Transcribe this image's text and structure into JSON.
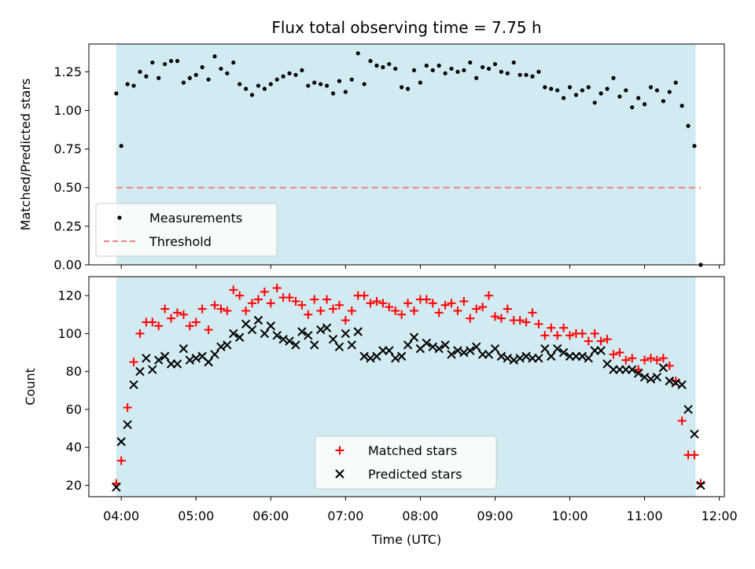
{
  "chart_data": [
    {
      "type": "scatter",
      "title": "Flux total observing time = 7.75 h",
      "xlabel": "",
      "ylabel": "Matched/Predicted stars",
      "xlim": [
        "03:34",
        "12:04"
      ],
      "ylim": [
        0,
        1.43
      ],
      "xticks": [
        "04:00",
        "05:00",
        "06:00",
        "07:00",
        "08:00",
        "09:00",
        "10:00",
        "11:00",
        "12:00"
      ],
      "yticks": [
        "0.00",
        "0.25",
        "0.50",
        "0.75",
        "1.00",
        "1.25"
      ],
      "observing_window": [
        "03:56",
        "11:41"
      ],
      "window_color": "#add8e6",
      "legend": {
        "placement": "lower-left",
        "entries": [
          "Measurements",
          "Threshold"
        ]
      },
      "threshold": {
        "name": "Threshold",
        "value": 0.5,
        "x_range": [
          "03:56",
          "11:45"
        ],
        "color": "#f08080",
        "style": "dashed"
      },
      "series": [
        {
          "name": "Measurements",
          "color": "#000000",
          "marker": "dot",
          "x": [
            "03:56",
            "04:00",
            "04:05",
            "04:10",
            "04:15",
            "04:20",
            "04:25",
            "04:30",
            "04:35",
            "04:40",
            "04:45",
            "04:50",
            "04:55",
            "05:00",
            "05:05",
            "05:10",
            "05:15",
            "05:20",
            "05:25",
            "05:30",
            "05:35",
            "05:40",
            "05:45",
            "05:50",
            "05:55",
            "06:00",
            "06:05",
            "06:10",
            "06:15",
            "06:20",
            "06:25",
            "06:30",
            "06:35",
            "06:40",
            "06:45",
            "06:50",
            "06:55",
            "07:00",
            "07:05",
            "07:10",
            "07:15",
            "07:20",
            "07:25",
            "07:30",
            "07:35",
            "07:40",
            "07:45",
            "07:50",
            "07:55",
            "08:00",
            "08:05",
            "08:10",
            "08:15",
            "08:20",
            "08:25",
            "08:30",
            "08:35",
            "08:40",
            "08:45",
            "08:50",
            "08:55",
            "09:00",
            "09:05",
            "09:10",
            "09:15",
            "09:20",
            "09:25",
            "09:30",
            "09:35",
            "09:40",
            "09:45",
            "09:50",
            "09:55",
            "10:00",
            "10:05",
            "10:10",
            "10:15",
            "10:20",
            "10:25",
            "10:30",
            "10:35",
            "10:40",
            "10:45",
            "10:50",
            "10:55",
            "11:00",
            "11:05",
            "11:10",
            "11:15",
            "11:20",
            "11:25",
            "11:30",
            "11:35",
            "11:40",
            "11:45"
          ],
          "values": [
            1.11,
            0.77,
            1.17,
            1.16,
            1.25,
            1.22,
            1.31,
            1.21,
            1.3,
            1.32,
            1.32,
            1.18,
            1.21,
            1.23,
            1.28,
            1.2,
            1.35,
            1.27,
            1.24,
            1.31,
            1.17,
            1.14,
            1.1,
            1.16,
            1.14,
            1.17,
            1.2,
            1.22,
            1.24,
            1.23,
            1.26,
            1.16,
            1.18,
            1.17,
            1.16,
            1.11,
            1.19,
            1.12,
            1.2,
            1.37,
            1.17,
            1.32,
            1.29,
            1.28,
            1.3,
            1.27,
            1.15,
            1.14,
            1.26,
            1.18,
            1.29,
            1.26,
            1.29,
            1.24,
            1.27,
            1.25,
            1.26,
            1.31,
            1.21,
            1.28,
            1.27,
            1.3,
            1.25,
            1.24,
            1.31,
            1.23,
            1.23,
            1.22,
            1.25,
            1.15,
            1.14,
            1.13,
            1.08,
            1.15,
            1.1,
            1.13,
            1.15,
            1.05,
            1.11,
            1.14,
            1.21,
            1.09,
            1.13,
            1.02,
            1.08,
            1.04,
            1.15,
            1.13,
            1.06,
            1.12,
            1.18,
            1.03,
            0.9,
            0.77,
            0.0
          ]
        }
      ]
    },
    {
      "type": "scatter",
      "xlabel": "Time (UTC)",
      "ylabel": "Count",
      "xlim": [
        "03:34",
        "12:04"
      ],
      "ylim": [
        14,
        130
      ],
      "xticks": [
        "04:00",
        "05:00",
        "06:00",
        "07:00",
        "08:00",
        "09:00",
        "10:00",
        "11:00",
        "12:00"
      ],
      "yticks": [
        "20",
        "40",
        "60",
        "80",
        "100",
        "120"
      ],
      "observing_window": [
        "03:56",
        "11:41"
      ],
      "window_color": "#add8e6",
      "legend": {
        "placement": "lower-center",
        "entries": [
          "Matched stars",
          "Predicted stars"
        ]
      },
      "series": [
        {
          "name": "Matched stars",
          "color": "#ff0000",
          "marker": "plus",
          "x": [
            "03:56",
            "04:00",
            "04:05",
            "04:10",
            "04:15",
            "04:20",
            "04:25",
            "04:30",
            "04:35",
            "04:40",
            "04:45",
            "04:50",
            "04:55",
            "05:00",
            "05:05",
            "05:10",
            "05:15",
            "05:20",
            "05:25",
            "05:30",
            "05:35",
            "05:40",
            "05:45",
            "05:50",
            "05:55",
            "06:00",
            "06:05",
            "06:10",
            "06:15",
            "06:20",
            "06:25",
            "06:30",
            "06:35",
            "06:40",
            "06:45",
            "06:50",
            "06:55",
            "07:00",
            "07:05",
            "07:10",
            "07:15",
            "07:20",
            "07:25",
            "07:30",
            "07:35",
            "07:40",
            "07:45",
            "07:50",
            "07:55",
            "08:00",
            "08:05",
            "08:10",
            "08:15",
            "08:20",
            "08:25",
            "08:30",
            "08:35",
            "08:40",
            "08:45",
            "08:50",
            "08:55",
            "09:00",
            "09:05",
            "09:10",
            "09:15",
            "09:20",
            "09:25",
            "09:30",
            "09:35",
            "09:40",
            "09:45",
            "09:50",
            "09:55",
            "10:00",
            "10:05",
            "10:10",
            "10:15",
            "10:20",
            "10:25",
            "10:30",
            "10:35",
            "10:40",
            "10:45",
            "10:50",
            "10:55",
            "11:00",
            "11:05",
            "11:10",
            "11:15",
            "11:20",
            "11:25",
            "11:30",
            "11:35",
            "11:40",
            "11:45"
          ],
          "values": [
            21,
            33,
            61,
            85,
            100,
            106,
            106,
            104,
            113,
            108,
            111,
            110,
            104,
            106,
            113,
            102,
            115,
            113,
            112,
            123,
            120,
            112,
            116,
            118,
            122,
            116,
            124,
            119,
            119,
            117,
            115,
            110,
            118,
            112,
            118,
            113,
            115,
            107,
            112,
            120,
            120,
            116,
            117,
            116,
            114,
            112,
            110,
            116,
            112,
            118,
            118,
            116,
            111,
            115,
            116,
            112,
            117,
            108,
            113,
            114,
            120,
            109,
            108,
            113,
            107,
            107,
            106,
            111,
            105,
            99,
            103,
            99,
            103,
            99,
            100,
            100,
            96,
            100,
            96,
            97,
            89,
            90,
            86,
            87,
            81,
            86,
            87,
            86,
            87,
            83,
            75,
            54,
            36,
            36,
            21
          ]
        },
        {
          "name": "Predicted stars",
          "color": "#000000",
          "marker": "cross",
          "x": [
            "03:56",
            "04:00",
            "04:05",
            "04:10",
            "04:15",
            "04:20",
            "04:25",
            "04:30",
            "04:35",
            "04:40",
            "04:45",
            "04:50",
            "04:55",
            "05:00",
            "05:05",
            "05:10",
            "05:15",
            "05:20",
            "05:25",
            "05:30",
            "05:35",
            "05:40",
            "05:45",
            "05:50",
            "05:55",
            "06:00",
            "06:05",
            "06:10",
            "06:15",
            "06:20",
            "06:25",
            "06:30",
            "06:35",
            "06:40",
            "06:45",
            "06:50",
            "06:55",
            "07:00",
            "07:05",
            "07:10",
            "07:15",
            "07:20",
            "07:25",
            "07:30",
            "07:35",
            "07:40",
            "07:45",
            "07:50",
            "07:55",
            "08:00",
            "08:05",
            "08:10",
            "08:15",
            "08:20",
            "08:25",
            "08:30",
            "08:35",
            "08:40",
            "08:45",
            "08:50",
            "08:55",
            "09:00",
            "09:05",
            "09:10",
            "09:15",
            "09:20",
            "09:25",
            "09:30",
            "09:35",
            "09:40",
            "09:45",
            "09:50",
            "09:55",
            "10:00",
            "10:05",
            "10:10",
            "10:15",
            "10:20",
            "10:25",
            "10:30",
            "10:35",
            "10:40",
            "10:45",
            "10:50",
            "10:55",
            "11:00",
            "11:05",
            "11:10",
            "11:15",
            "11:20",
            "11:25",
            "11:30",
            "11:35",
            "11:40",
            "11:45"
          ],
          "values": [
            19,
            43,
            52,
            73,
            80,
            87,
            81,
            86,
            88,
            84,
            84,
            92,
            86,
            87,
            88,
            85,
            89,
            93,
            94,
            100,
            98,
            105,
            102,
            107,
            100,
            104,
            99,
            97,
            96,
            94,
            101,
            99,
            94,
            102,
            103,
            97,
            93,
            100,
            94,
            101,
            88,
            87,
            88,
            91,
            91,
            87,
            88,
            94,
            98,
            92,
            95,
            93,
            92,
            94,
            89,
            91,
            90,
            91,
            93,
            89,
            89,
            92,
            88,
            87,
            86,
            87,
            88,
            87,
            87,
            92,
            88,
            92,
            90,
            88,
            88,
            88,
            87,
            91,
            91,
            84,
            81,
            81,
            81,
            81,
            79,
            77,
            76,
            77,
            82,
            75,
            74,
            73,
            60,
            47,
            20
          ]
        }
      ]
    }
  ]
}
